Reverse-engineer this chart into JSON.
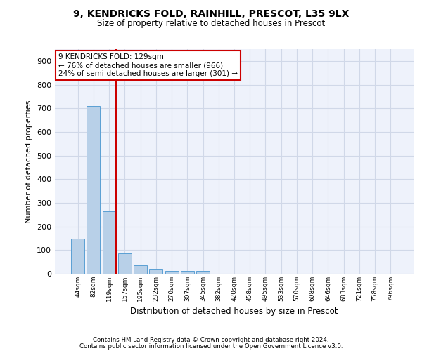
{
  "title_line1": "9, KENDRICKS FOLD, RAINHILL, PRESCOT, L35 9LX",
  "title_line2": "Size of property relative to detached houses in Prescot",
  "xlabel": "Distribution of detached houses by size in Prescot",
  "ylabel": "Number of detached properties",
  "categories": [
    "44sqm",
    "82sqm",
    "119sqm",
    "157sqm",
    "195sqm",
    "232sqm",
    "270sqm",
    "307sqm",
    "345sqm",
    "382sqm",
    "420sqm",
    "458sqm",
    "495sqm",
    "533sqm",
    "570sqm",
    "608sqm",
    "646sqm",
    "683sqm",
    "721sqm",
    "758sqm",
    "796sqm"
  ],
  "values": [
    148,
    711,
    263,
    85,
    35,
    22,
    13,
    13,
    12,
    0,
    0,
    0,
    0,
    0,
    0,
    0,
    0,
    0,
    0,
    0,
    0
  ],
  "bar_color": "#b8d0e8",
  "bar_edge_color": "#5a9fd4",
  "grid_color": "#d0d8e8",
  "background_color": "#eef2fb",
  "vline_color": "#cc0000",
  "annotation_text": "9 KENDRICKS FOLD: 129sqm\n← 76% of detached houses are smaller (966)\n24% of semi-detached houses are larger (301) →",
  "annotation_box_color": "#ffffff",
  "annotation_box_edge": "#cc0000",
  "ylim": [
    0,
    950
  ],
  "yticks": [
    0,
    100,
    200,
    300,
    400,
    500,
    600,
    700,
    800,
    900
  ],
  "footer_line1": "Contains HM Land Registry data © Crown copyright and database right 2024.",
  "footer_line2": "Contains public sector information licensed under the Open Government Licence v3.0."
}
